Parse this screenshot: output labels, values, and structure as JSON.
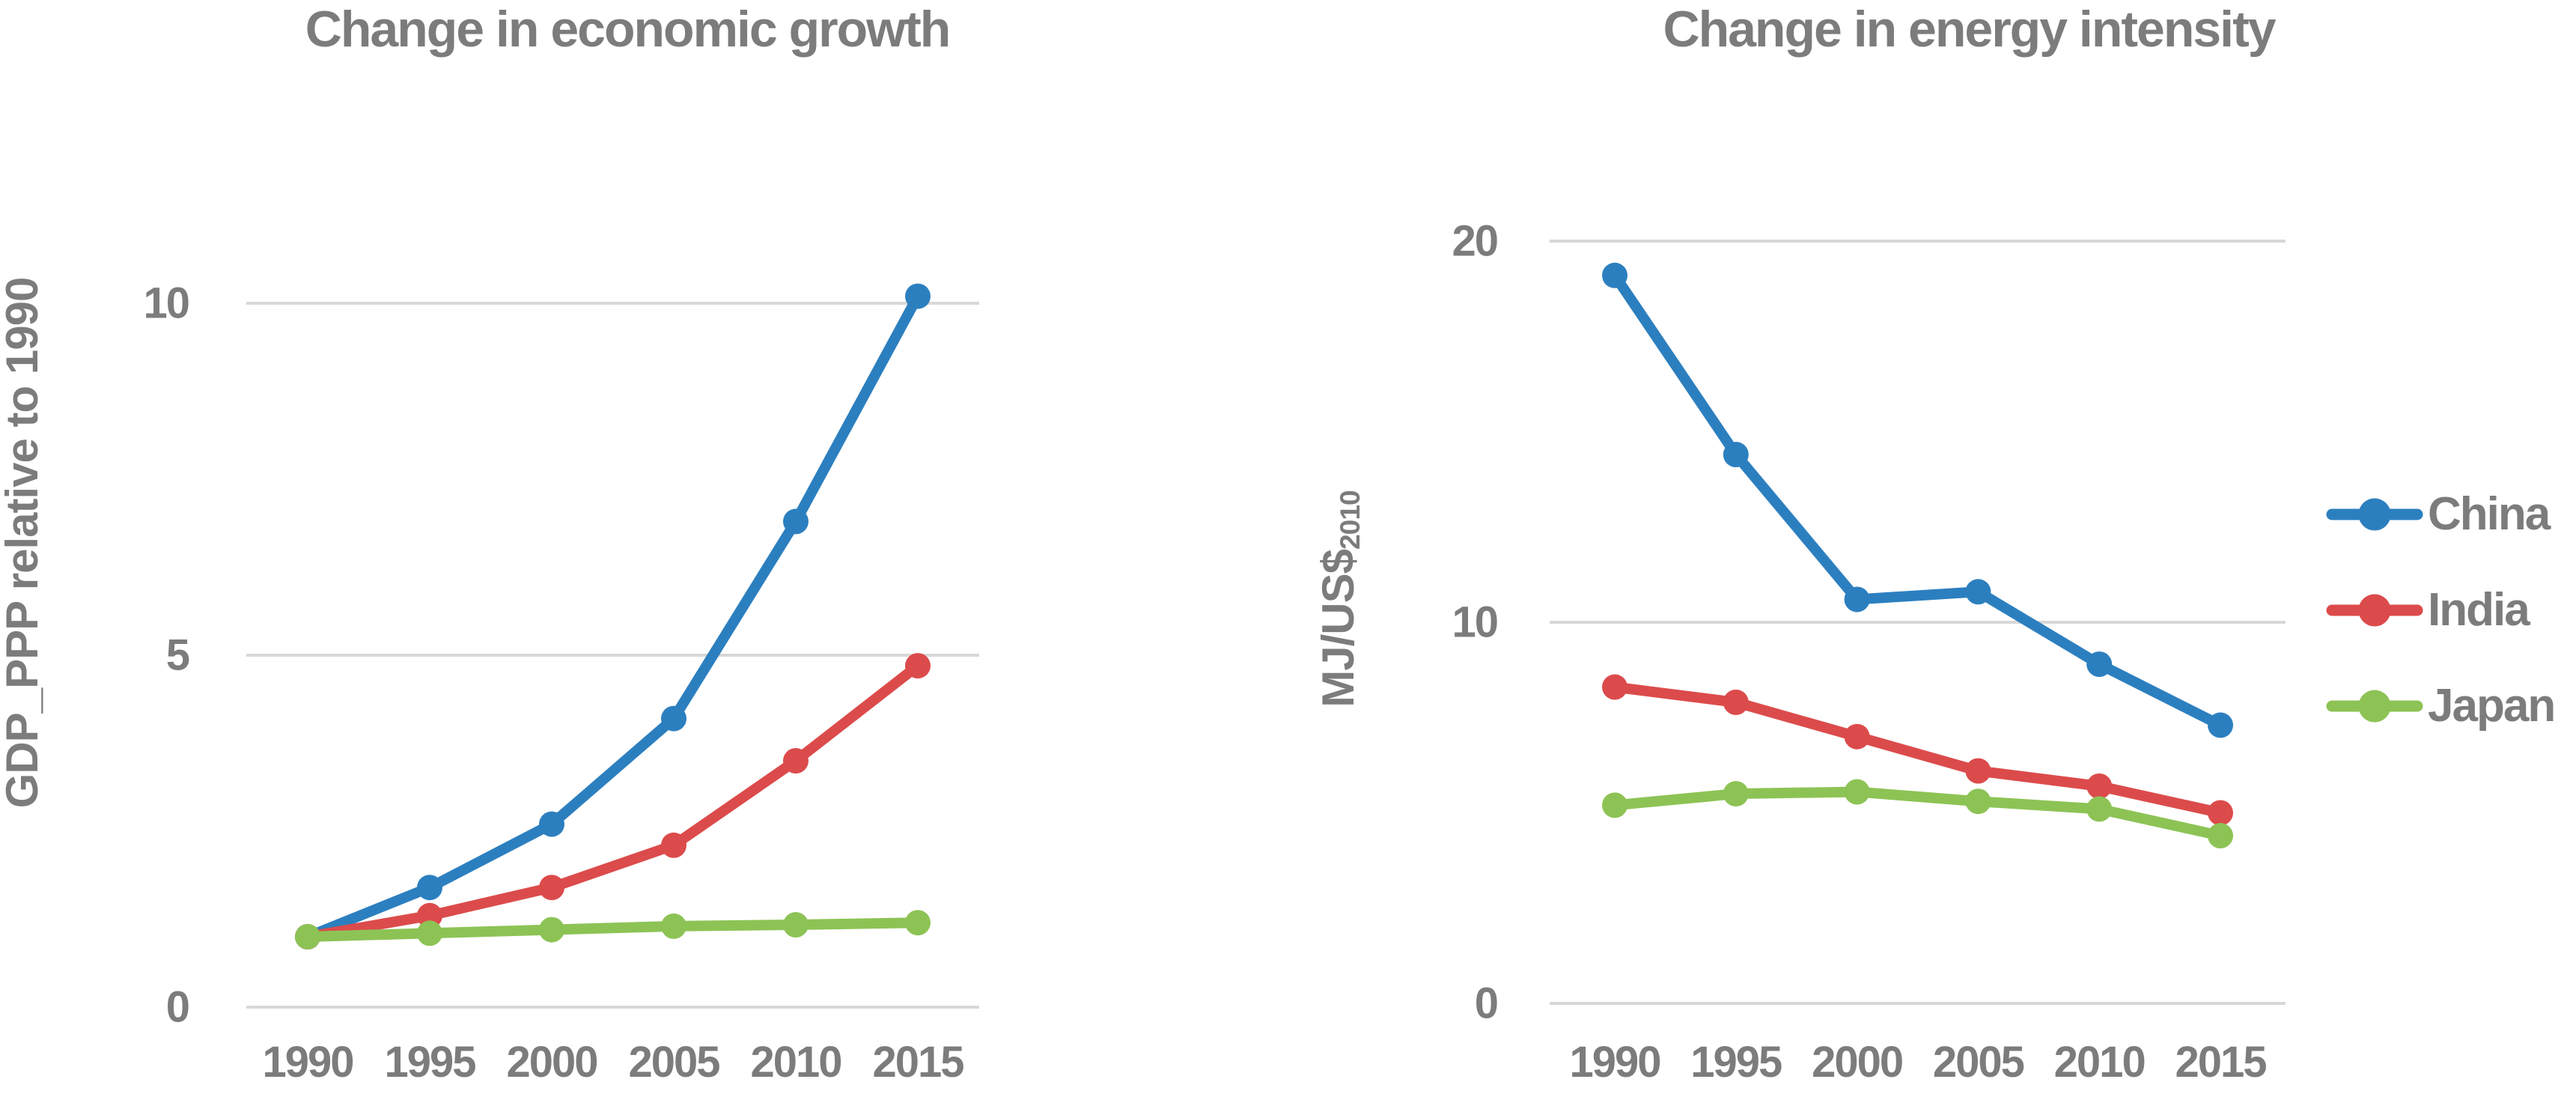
{
  "figure": {
    "background": "#ffffff"
  },
  "colors": {
    "china": "#2C7FBF",
    "india": "#DC4B4B",
    "japan": "#8DC355",
    "text": "#7C7C7C",
    "gridline": "#D8D8D8"
  },
  "legend": {
    "position": "right",
    "items": [
      {
        "label": "China",
        "key": "china"
      },
      {
        "label": "India",
        "key": "india"
      },
      {
        "label": "Japan",
        "key": "japan"
      }
    ]
  },
  "chart_data": [
    {
      "type": "line",
      "title": "Change in economic growth",
      "xlabel": "",
      "ylabel": "GDP_PPP relative to 1990",
      "categories": [
        "1990",
        "1995",
        "2000",
        "2005",
        "2010",
        "2015"
      ],
      "yticks": [
        0,
        5,
        10
      ],
      "ylim": [
        0,
        11
      ],
      "grid": "horizontal",
      "markers": "circle",
      "series": [
        {
          "name": "China",
          "values": [
            1.0,
            1.7,
            2.6,
            4.1,
            6.9,
            10.1
          ]
        },
        {
          "name": "India",
          "values": [
            1.0,
            1.3,
            1.7,
            2.3,
            3.5,
            4.85
          ]
        },
        {
          "name": "Japan",
          "values": [
            1.0,
            1.05,
            1.1,
            1.15,
            1.17,
            1.2
          ]
        }
      ]
    },
    {
      "type": "line",
      "title": "Change in energy intensity",
      "xlabel": "",
      "ylabel": "MJ/US$",
      "ylabel_subscript": "2010",
      "categories": [
        "1990",
        "1995",
        "2000",
        "2005",
        "2010",
        "2015"
      ],
      "yticks": [
        0,
        10,
        20
      ],
      "ylim": [
        0,
        21
      ],
      "grid": "horizontal",
      "markers": "circle",
      "series": [
        {
          "name": "China",
          "values": [
            19.1,
            14.4,
            10.6,
            10.8,
            8.9,
            7.3
          ]
        },
        {
          "name": "India",
          "values": [
            8.3,
            7.9,
            7.0,
            6.1,
            5.7,
            5.0
          ]
        },
        {
          "name": "Japan",
          "values": [
            5.2,
            5.5,
            5.55,
            5.3,
            5.1,
            4.4
          ]
        }
      ]
    }
  ]
}
